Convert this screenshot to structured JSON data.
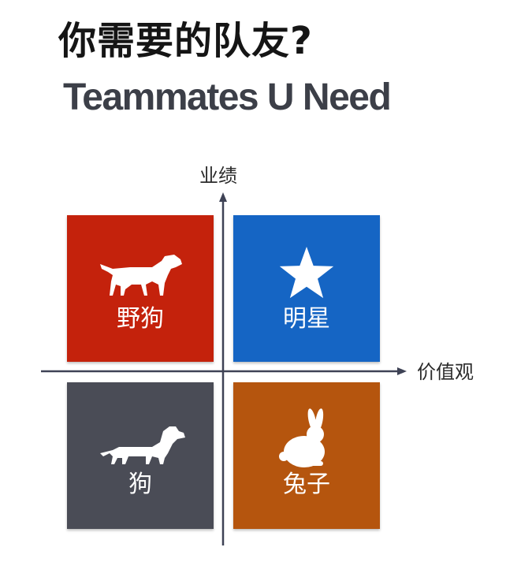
{
  "title": "你需要的队友?",
  "subtitle": "Teammates U Need",
  "axes": {
    "y_label": "业绩",
    "x_label": "价值观"
  },
  "quadrants": [
    {
      "label": "野狗",
      "icon": "walking-dog-icon",
      "color": "#c4220c"
    },
    {
      "label": "明星",
      "icon": "star-icon",
      "color": "#1565c4"
    },
    {
      "label": "狗",
      "icon": "dachshund-icon",
      "color": "#4a4c56"
    },
    {
      "label": "兔子",
      "icon": "rabbit-icon",
      "color": "#b5550e"
    }
  ],
  "colors": {
    "axis": "#3e4255",
    "title": "#151515",
    "subtitle": "#3c3f48"
  }
}
